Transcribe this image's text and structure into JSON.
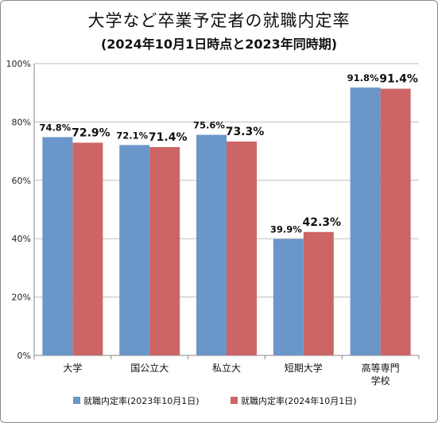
{
  "chart_data": {
    "type": "bar",
    "title": "大学など卒業予定者の就職内定率",
    "subtitle": "(2024年10月1日時点と2023年同時期)",
    "categories": [
      "大学",
      "国公立大",
      "私立大",
      "短期大学",
      "高等専門\n学校"
    ],
    "series": [
      {
        "name": "就職内定率(2023年10月1日)",
        "values": [
          74.8,
          72.1,
          75.6,
          39.9,
          91.8
        ],
        "labels": [
          "74.8%",
          "72.1%",
          "75.6%",
          "39.9%",
          "91.8%"
        ],
        "color": "#6b96c9"
      },
      {
        "name": "就職内定率(2024年10月1日)",
        "values": [
          72.9,
          71.4,
          73.3,
          42.3,
          91.4
        ],
        "labels": [
          "72.9%",
          "71.4%",
          "73.3%",
          "42.3%",
          "91.4%"
        ],
        "color": "#cc6666"
      }
    ],
    "ylim": [
      0,
      100
    ],
    "yticks": [
      0,
      20,
      40,
      60,
      80,
      100
    ],
    "ytick_labels": [
      "0%",
      "20%",
      "40%",
      "60%",
      "80%",
      "100%"
    ],
    "grid": true,
    "legend": "bottom",
    "xlabel": "",
    "ylabel": ""
  }
}
